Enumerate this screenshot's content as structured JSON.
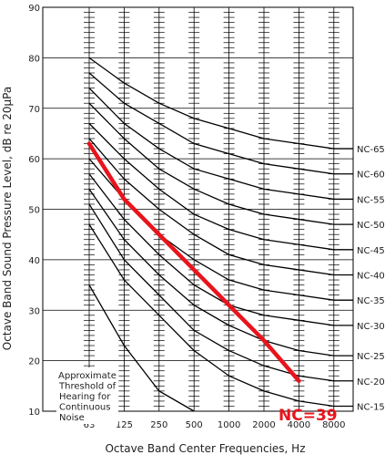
{
  "chart_data": {
    "type": "line",
    "xlabel": "Octave Band Center Frequencies, Hz",
    "ylabel": "Octave Band Sound Pressure Level, dB re 20µPa",
    "ylim": [
      10,
      90
    ],
    "yticks": [
      10,
      20,
      30,
      40,
      50,
      60,
      70,
      80,
      90
    ],
    "categories": [
      "63",
      "125",
      "250",
      "500",
      "1000",
      "2000",
      "4000",
      "8000"
    ],
    "grid": true,
    "series": [
      {
        "name": "NC-65",
        "values": [
          80,
          75,
          71,
          68,
          66,
          64,
          63,
          62
        ]
      },
      {
        "name": "NC-60",
        "values": [
          77,
          71,
          67,
          63,
          61,
          59,
          58,
          57
        ]
      },
      {
        "name": "NC-55",
        "values": [
          74,
          67,
          62,
          58,
          56,
          54,
          53,
          52
        ]
      },
      {
        "name": "NC-50",
        "values": [
          71,
          64,
          58,
          54,
          51,
          49,
          48,
          47
        ]
      },
      {
        "name": "NC-45",
        "values": [
          67,
          60,
          54,
          49,
          46,
          44,
          43,
          42
        ]
      },
      {
        "name": "NC-40",
        "values": [
          64,
          56,
          50,
          45,
          41,
          39,
          38,
          37
        ]
      },
      {
        "name": "NC-35",
        "values": [
          60,
          52,
          45,
          40,
          36,
          34,
          33,
          32
        ]
      },
      {
        "name": "NC-30",
        "values": [
          57,
          48,
          41,
          35,
          31,
          29,
          28,
          27
        ]
      },
      {
        "name": "NC-25",
        "values": [
          54,
          44,
          37,
          31,
          27,
          24,
          22,
          21
        ]
      },
      {
        "name": "NC-20",
        "values": [
          51,
          40,
          33,
          26,
          22,
          19,
          17,
          16
        ]
      },
      {
        "name": "NC-15",
        "values": [
          47,
          36,
          29,
          22,
          17,
          14,
          12,
          11
        ]
      }
    ],
    "threshold": {
      "values": [
        35,
        23,
        14,
        10
      ]
    },
    "measured": {
      "values": [
        63,
        52,
        45,
        38,
        31,
        24,
        16
      ],
      "color": "#e8141c",
      "label": "NC=39"
    },
    "annotation": [
      "Approximate",
      "Threshold of",
      "Hearing for",
      "Continuous",
      "Noise"
    ]
  }
}
